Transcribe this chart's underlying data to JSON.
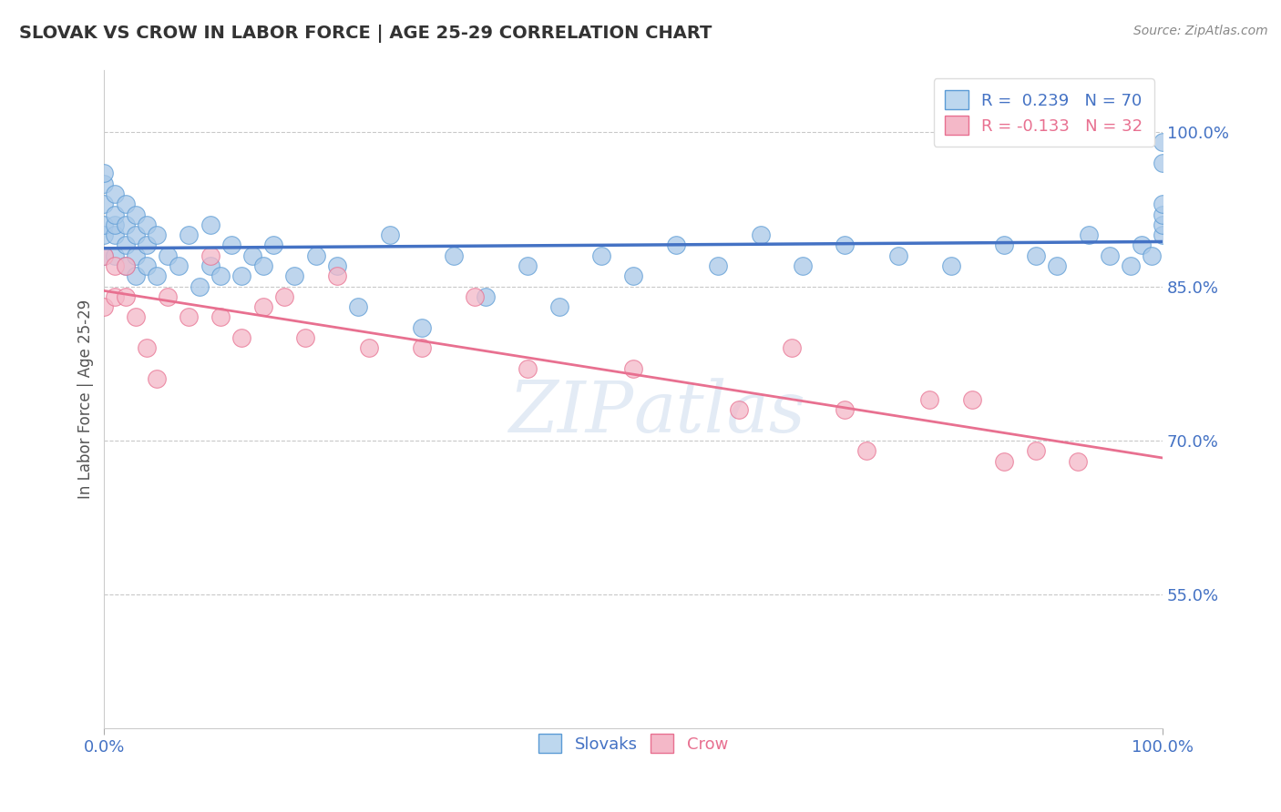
{
  "title": "SLOVAK VS CROW IN LABOR FORCE | AGE 25-29 CORRELATION CHART",
  "source": "Source: ZipAtlas.com",
  "ylabel": "In Labor Force | Age 25-29",
  "xlim": [
    0.0,
    1.0
  ],
  "ylim": [
    0.42,
    1.06
  ],
  "yticks": [
    0.55,
    0.7,
    0.85,
    1.0
  ],
  "ytick_labels": [
    "55.0%",
    "70.0%",
    "85.0%",
    "100.0%"
  ],
  "xtick_labels": [
    "0.0%",
    "100.0%"
  ],
  "xticks": [
    0.0,
    1.0
  ],
  "blue_R": 0.239,
  "blue_N": 70,
  "pink_R": -0.133,
  "pink_N": 32,
  "blue_color": "#A8C8E8",
  "pink_color": "#F4B8C8",
  "blue_edge_color": "#5B9BD5",
  "pink_edge_color": "#E87090",
  "blue_line_color": "#4472C4",
  "pink_line_color": "#E87090",
  "legend_blue_fill": "#BDD7EE",
  "legend_pink_fill": "#F4B8C8",
  "watermark_color": "#C8D8EC",
  "blue_scatter_x": [
    0.0,
    0.0,
    0.0,
    0.0,
    0.0,
    0.0,
    0.01,
    0.01,
    0.01,
    0.01,
    0.01,
    0.02,
    0.02,
    0.02,
    0.02,
    0.03,
    0.03,
    0.03,
    0.03,
    0.04,
    0.04,
    0.04,
    0.05,
    0.05,
    0.06,
    0.07,
    0.08,
    0.09,
    0.1,
    0.1,
    0.11,
    0.12,
    0.13,
    0.14,
    0.15,
    0.16,
    0.18,
    0.2,
    0.22,
    0.24,
    0.27,
    0.3,
    0.33,
    0.36,
    0.4,
    0.43,
    0.47,
    0.5,
    0.54,
    0.58,
    0.62,
    0.66,
    0.7,
    0.75,
    0.8,
    0.85,
    0.88,
    0.9,
    0.93,
    0.95,
    0.97,
    0.98,
    0.99,
    1.0,
    1.0,
    1.0,
    1.0,
    1.0,
    1.0
  ],
  "blue_scatter_y": [
    0.88,
    0.9,
    0.91,
    0.93,
    0.95,
    0.96,
    0.88,
    0.9,
    0.91,
    0.92,
    0.94,
    0.87,
    0.89,
    0.91,
    0.93,
    0.88,
    0.9,
    0.92,
    0.86,
    0.87,
    0.89,
    0.91,
    0.86,
    0.9,
    0.88,
    0.87,
    0.9,
    0.85,
    0.87,
    0.91,
    0.86,
    0.89,
    0.86,
    0.88,
    0.87,
    0.89,
    0.86,
    0.88,
    0.87,
    0.83,
    0.9,
    0.81,
    0.88,
    0.84,
    0.87,
    0.83,
    0.88,
    0.86,
    0.89,
    0.87,
    0.9,
    0.87,
    0.89,
    0.88,
    0.87,
    0.89,
    0.88,
    0.87,
    0.9,
    0.88,
    0.87,
    0.89,
    0.88,
    0.9,
    0.91,
    0.92,
    0.93,
    0.97,
    0.99
  ],
  "pink_scatter_x": [
    0.0,
    0.0,
    0.01,
    0.01,
    0.02,
    0.02,
    0.03,
    0.04,
    0.05,
    0.06,
    0.08,
    0.1,
    0.11,
    0.13,
    0.15,
    0.17,
    0.19,
    0.22,
    0.25,
    0.3,
    0.35,
    0.4,
    0.5,
    0.6,
    0.65,
    0.7,
    0.72,
    0.78,
    0.82,
    0.85,
    0.88,
    0.92
  ],
  "pink_scatter_y": [
    0.88,
    0.83,
    0.87,
    0.84,
    0.87,
    0.84,
    0.82,
    0.79,
    0.76,
    0.84,
    0.82,
    0.88,
    0.82,
    0.8,
    0.83,
    0.84,
    0.8,
    0.86,
    0.79,
    0.79,
    0.84,
    0.77,
    0.77,
    0.73,
    0.79,
    0.73,
    0.69,
    0.74,
    0.74,
    0.68,
    0.69,
    0.68
  ]
}
